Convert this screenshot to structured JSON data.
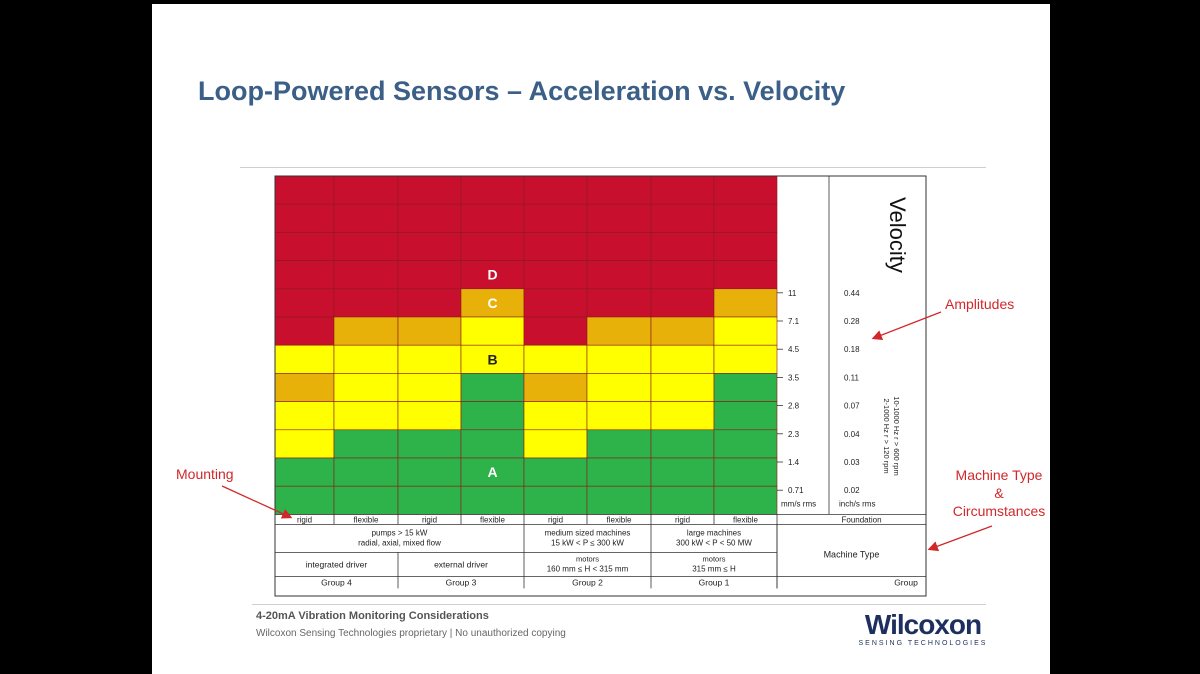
{
  "title": "Loop-Powered Sensors – Acceleration vs. Velocity",
  "chart_data": {
    "type": "table",
    "colors": {
      "D": "#c8102e",
      "C": "#e7b10a",
      "B": "#ffff00",
      "A": "#2db34a"
    },
    "zone_labels": [
      "D",
      "C",
      "B",
      "A"
    ],
    "columns": [
      {
        "foundation": "rigid",
        "cells": [
          "D",
          "D",
          "D",
          "D",
          "D",
          "D",
          "B",
          "C",
          "B",
          "B",
          "A",
          "A"
        ]
      },
      {
        "foundation": "flexible",
        "cells": [
          "D",
          "D",
          "D",
          "D",
          "D",
          "C",
          "B",
          "B",
          "B",
          "A",
          "A",
          "A"
        ]
      },
      {
        "foundation": "rigid",
        "cells": [
          "D",
          "D",
          "D",
          "D",
          "D",
          "C",
          "B",
          "B",
          "B",
          "A",
          "A",
          "A"
        ]
      },
      {
        "foundation": "flexible",
        "cells": [
          "D",
          "D",
          "D",
          "D",
          "C",
          "B",
          "B",
          "A",
          "A",
          "A",
          "A",
          "A"
        ]
      },
      {
        "foundation": "rigid",
        "cells": [
          "D",
          "D",
          "D",
          "D",
          "D",
          "D",
          "B",
          "C",
          "B",
          "B",
          "A",
          "A"
        ]
      },
      {
        "foundation": "flexible",
        "cells": [
          "D",
          "D",
          "D",
          "D",
          "D",
          "C",
          "B",
          "B",
          "B",
          "A",
          "A",
          "A"
        ]
      },
      {
        "foundation": "rigid",
        "cells": [
          "D",
          "D",
          "D",
          "D",
          "D",
          "C",
          "B",
          "B",
          "B",
          "A",
          "A",
          "A"
        ]
      },
      {
        "foundation": "flexible",
        "cells": [
          "D",
          "D",
          "D",
          "D",
          "C",
          "B",
          "B",
          "A",
          "A",
          "A",
          "A",
          "A"
        ]
      }
    ],
    "zone_markers": [
      {
        "label": "D",
        "col": 3,
        "row": 3
      },
      {
        "label": "C",
        "col": 3,
        "row": 4
      },
      {
        "label": "B",
        "col": 3,
        "row": 6
      },
      {
        "label": "A",
        "col": 3,
        "row": 10
      }
    ],
    "mm_values": [
      "11",
      "7.1",
      "4.5",
      "3.5",
      "2.8",
      "2.3",
      "1.4",
      "0.71"
    ],
    "inch_values": [
      "0.44",
      "0.28",
      "0.18",
      "0.11",
      "0.07",
      "0.04",
      "0.03",
      "0.02"
    ],
    "mm_unit": "mm/s rms",
    "inch_unit": "inch/s rms",
    "velocity_label": "Velocity",
    "freq_line1": "10-1000 Hz r > 600 rpm",
    "freq_line2": "2-1000 Hz r > 120 rpm",
    "foundation_label": "Foundation",
    "machine_type_label": "Machine Type",
    "group_label": "Group",
    "machine_type_cells": [
      {
        "line1": "pumps > 15 kW",
        "line2": "radial, axial, mixed flow"
      },
      {
        "line1": "medium sized machines",
        "line2": "15 kW < P ≤ 300 kW"
      },
      {
        "line1": "large machines",
        "line2": "300 kW < P < 50 MW"
      }
    ],
    "driver_cells": [
      {
        "line1": "integrated driver",
        "line2": ""
      },
      {
        "line1": "external driver",
        "line2": ""
      },
      {
        "line1": "motors",
        "line2": "160 mm ≤ H < 315 mm"
      },
      {
        "line1": "motors",
        "line2": "315 mm ≤ H"
      }
    ],
    "groups": [
      "Group 4",
      "Group 3",
      "Group 2",
      "Group 1"
    ]
  },
  "annotations": {
    "amplitudes": "Amplitudes",
    "mounting": "Mounting",
    "machine_type_line1": "Machine Type",
    "machine_type_line2": "&",
    "machine_type_line3": "Circumstances"
  },
  "footer": {
    "title": "4-20mA Vibration Monitoring Considerations",
    "subtitle": "Wilcoxon Sensing Technologies proprietary | No unauthorized copying"
  },
  "logo": {
    "main": "Wilcoxon",
    "sub": "SENSING TECHNOLOGIES"
  }
}
